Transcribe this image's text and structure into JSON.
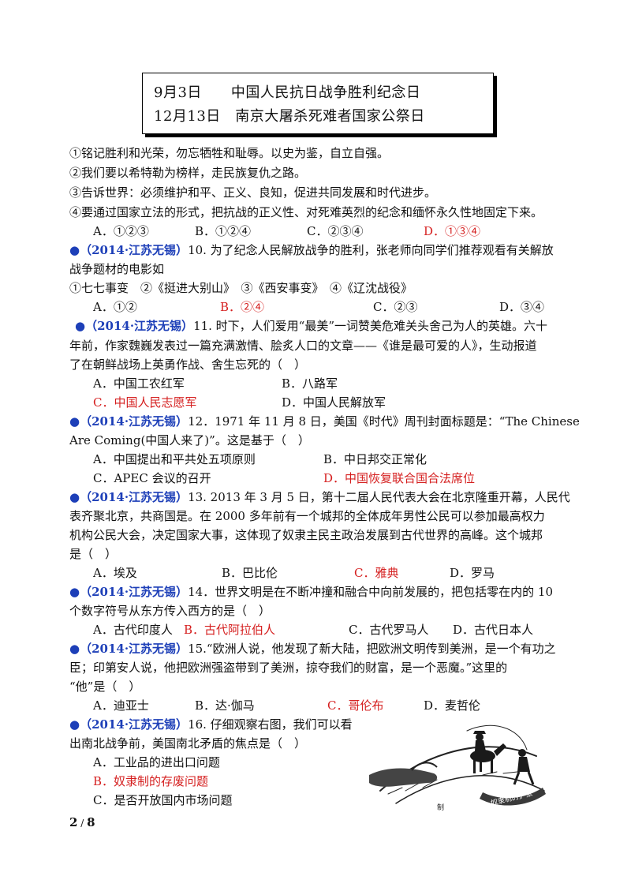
{
  "box": {
    "line1": "9月3日　　中国人民抗日战争胜利纪念日",
    "line2": "12月13日　南京大屠杀死难者国家公祭日"
  },
  "q9": {
    "s1": "①铭记胜利和光荣，勿忘牺牲和耻辱。以史为鉴，自立自强。",
    "s2": "②我们要以希特勒为榜样，走民族复仇之路。",
    "s3": "③告诉世界：必须维护和平、正义、良知，促进共同发展和时代进步。",
    "s4": "④要通过国家立法的形式，把抗战的正义性、对死难英烈的纪念和缅怀永久性地固定下来。",
    "options": [
      "A．①②③",
      "B．①②④",
      "C．②③④",
      "D．①③④"
    ]
  },
  "q10": {
    "tag": "●（2014·江苏无锡）",
    "l1": "10. 为了纪念人民解放战争的胜利，张老师向同学们推荐观看有关解放",
    "l2": "战争题材的电影如",
    "l3": "①七七事变　②《挺进大别山》　③《西安事变》　④《辽沈战役》",
    "options": [
      "A．①②",
      "B．②④",
      "C．②③",
      "D．③④"
    ]
  },
  "q11": {
    "tag": "●（2014·江苏无锡）",
    "l1": "11. 时下，人们爱用“最美”一词赞美危难关头舍己为人的英雄。六十",
    "l2": "年前，作家魏巍发表过一篇充满激情、脍炙人口的文章——《谁是最可爱的人》，生动报道",
    "l3": "了在朝鲜战场上英勇作战、舍生忘死的（　）",
    "options": [
      "A．中国工农红军",
      "B．八路军",
      "C．中国人民志愿军",
      "D．中国人民解放军"
    ]
  },
  "q12": {
    "tag": "●（2014·江苏无锡）",
    "l1": "12．1971 年 11 月 8 日，美国《时代》周刊封面标题是：“The Chinese",
    "l2": "Are Coming(中国人来了)”。这是基于（　）",
    "options": [
      "A．中国提出和平共处五项原则",
      "B．中日邦交正常化",
      "C．APEC 会议的召开",
      "D．中国恢复联合国合法席位"
    ]
  },
  "q13": {
    "tag": "●（2014·江苏无锡）",
    "l1": "13. 2013 年 3 月 5 日，第十二届人民代表大会在北京隆重开幕，人民代",
    "l2": "表齐聚北京，共商国是。在 2000 多年前有一个城邦的全体成年男性公民可以参加最高权力",
    "l3": "机构公民大会，决定国家大事，这体现了奴隶主民主政治发展到古代世界的高峰。这个城邦",
    "l4": "是（　）",
    "options": [
      "A．埃及",
      "B．巴比伦",
      "C．雅典",
      "D．罗马"
    ]
  },
  "q14": {
    "tag": "●（2014·江苏无锡）",
    "l1": "14．世界文明是在不断冲撞和融合中向前发展的，把包括零在内的 10",
    "l2": "个数字符号从东方传入西方的是（　）",
    "options": [
      "A．古代印度人",
      "B．古代阿拉伯人",
      "C．古代罗马人",
      "D．古代日本人"
    ]
  },
  "q15": {
    "tag": "●（2014·江苏无锡）",
    "l1": "15.“欧洲人说，他发现了新大陆，把欧洲文明传到美洲，是一个有功之",
    "l2": "臣；印第安人说，他把欧洲强盗带到了美洲，掠夺我们的财富，是一个恶魔。”这里的",
    "l3": "“他”是（　）",
    "options": [
      "A．迪亚士",
      "B．达·伽马",
      "C．哥伦布",
      "D．麦哲伦"
    ]
  },
  "q16": {
    "tag": "●（2014·江苏无锡）",
    "l1": "16. 仔细观察右图，我们可以看",
    "l2": "出南北战争前，美国南北矛盾的焦点是（　）",
    "options": [
      "A．工业品的进出口问题",
      "B．奴隶制的存废问题",
      "C．是否开放国内市场问题"
    ],
    "illustration_text": [
      "奴隶制的扩张",
      "制"
    ]
  },
  "page_number": "2",
  "page_total": "8",
  "colors": {
    "answer": "#d51f1f",
    "source_tag": "#1d3fb8"
  }
}
